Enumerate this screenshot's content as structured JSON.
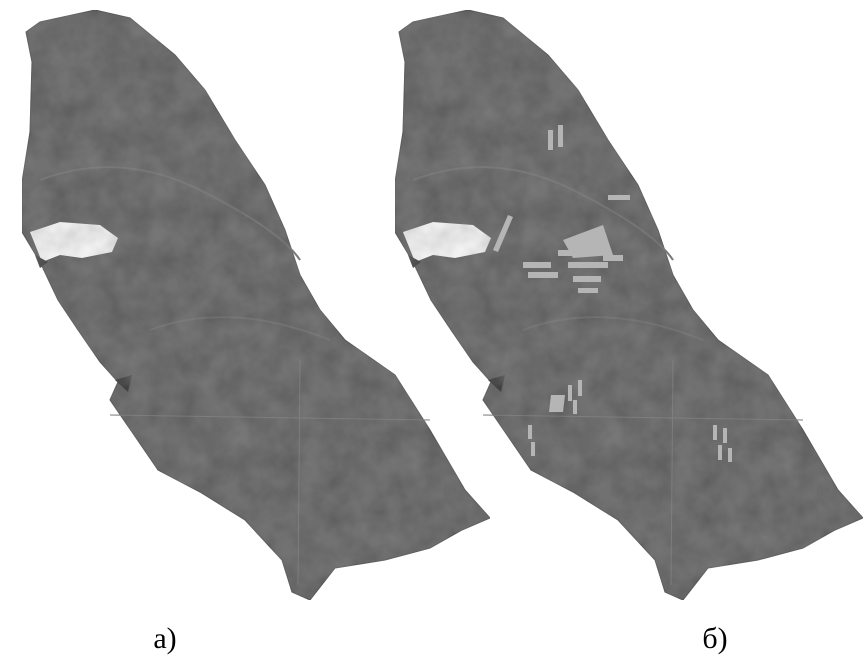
{
  "labels": {
    "left": "а)",
    "right": "б)"
  }
}
